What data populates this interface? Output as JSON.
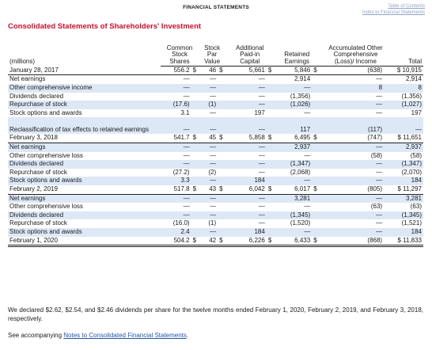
{
  "header": {
    "title": "FINANCIAL STATEMENTS",
    "links": [
      "Table of Contents",
      "Index to Financial Statements"
    ]
  },
  "page_title": "Consolidated Statements of Shareholders' Investment",
  "columns": [
    "(millions)",
    "Common\nStock\nShares",
    "Stock\nPar\nValue",
    "Additional\nPaid-in\nCapital",
    "Retained\nEarnings",
    "Accumulated Other\nComprehensive\n(Loss)/ Income",
    "Total"
  ],
  "rows": [
    {
      "label": "January 28, 2017",
      "cells": [
        "556.2",
        "$",
        "46",
        "$",
        "5,661",
        "$",
        "5,846",
        "$",
        "(638)",
        "$ 10,915"
      ],
      "style": "bal"
    },
    {
      "label": "Net earnings",
      "cells": [
        "—",
        "",
        "—",
        "",
        "—",
        "",
        "2,914",
        "",
        "—",
        "2,914"
      ]
    },
    {
      "label": "Other comprehensive income",
      "cells": [
        "—",
        "",
        "—",
        "",
        "—",
        "",
        "—",
        "",
        "8",
        "8"
      ],
      "shade": true
    },
    {
      "label": "Dividends declared",
      "cells": [
        "—",
        "",
        "—",
        "",
        "—",
        "",
        "(1,356)",
        "",
        "—",
        "(1,356)"
      ]
    },
    {
      "label": "Repurchase of stock",
      "cells": [
        "(17.6)",
        "",
        "(1)",
        "",
        "—",
        "",
        "(1,026)",
        "",
        "—",
        "(1,027)"
      ],
      "shade": true
    },
    {
      "label": "Stock options and awards",
      "cells": [
        "3.1",
        "",
        "—",
        "",
        "197",
        "",
        "—",
        "",
        "—",
        "197"
      ]
    },
    {
      "label": "Reclassification of tax effects to retained earnings",
      "cells": [
        "—",
        "",
        "—",
        "",
        "—",
        "",
        "117",
        "",
        "(117)",
        "—"
      ],
      "shade": true,
      "tall": true
    },
    {
      "label": "February 3, 2018",
      "cells": [
        "541.7",
        "$",
        "45",
        "$",
        "5,858",
        "$",
        "6,495",
        "$",
        "(747)",
        "$ 11,651"
      ],
      "style": "bal"
    },
    {
      "label": "Net earnings",
      "cells": [
        "—",
        "",
        "—",
        "",
        "—",
        "",
        "2,937",
        "",
        "—",
        "2,937"
      ],
      "shade": true
    },
    {
      "label": "Other comprehensive loss",
      "cells": [
        "—",
        "",
        "—",
        "",
        "—",
        "",
        "—",
        "",
        "(58)",
        "(58)"
      ]
    },
    {
      "label": "Dividends declared",
      "cells": [
        "—",
        "",
        "—",
        "",
        "—",
        "",
        "(1,347)",
        "",
        "—",
        "(1,347)"
      ],
      "shade": true
    },
    {
      "label": "Repurchase of stock",
      "cells": [
        "(27.2)",
        "",
        "(2)",
        "",
        "—",
        "",
        "(2,068)",
        "",
        "—",
        "(2,070)"
      ]
    },
    {
      "label": "Stock options and awards",
      "cells": [
        "3.3",
        "",
        "—",
        "",
        "184",
        "",
        "—",
        "",
        "—",
        "184"
      ],
      "shade": true
    },
    {
      "label": "February 2, 2019",
      "cells": [
        "517.8",
        "$",
        "43",
        "$",
        "6,042",
        "$",
        "6,017",
        "$",
        "(805)",
        "$ 11,297"
      ],
      "style": "bal"
    },
    {
      "label": "Net earnings",
      "cells": [
        "—",
        "",
        "—",
        "",
        "—",
        "",
        "3,281",
        "",
        "—",
        "3,281"
      ],
      "shade": true
    },
    {
      "label": "Other comprehensive loss",
      "cells": [
        "—",
        "",
        "—",
        "",
        "—",
        "",
        "—",
        "",
        "(63)",
        "(63)"
      ]
    },
    {
      "label": "Dividends declared",
      "cells": [
        "—",
        "",
        "—",
        "",
        "—",
        "",
        "(1,345)",
        "",
        "—",
        "(1,345)"
      ],
      "shade": true
    },
    {
      "label": "Repurchase of stock",
      "cells": [
        "(16.0)",
        "",
        "(1)",
        "",
        "—",
        "",
        "(1,520)",
        "",
        "—",
        "(1,521)"
      ]
    },
    {
      "label": "Stock options and awards",
      "cells": [
        "2.4",
        "",
        "—",
        "",
        "184",
        "",
        "—",
        "",
        "—",
        "184"
      ],
      "shade": true
    },
    {
      "label": "February 1, 2020",
      "cells": [
        "504.2",
        "$",
        "42",
        "$",
        "6,226",
        "$",
        "6,433",
        "$",
        "(868)",
        "$ 11,833"
      ],
      "style": "dbl"
    }
  ],
  "footnote": "We declared $2.62, $2.54, and $2.46 dividends per share for the twelve months ended February 1, 2020, February 2, 2019, and February 3, 2018, respectively.",
  "see_prefix": "See accompanying ",
  "see_link": "Notes to Consolidated Financial Statements",
  "see_suffix": "."
}
